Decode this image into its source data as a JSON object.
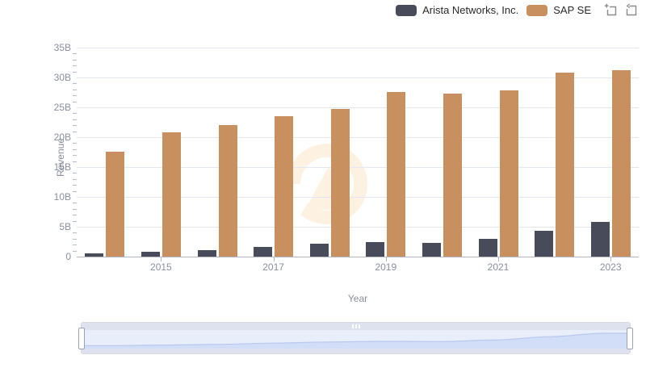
{
  "legend": {
    "items": [
      {
        "label": "Arista Networks, Inc.",
        "color": "#474b5a"
      },
      {
        "label": "SAP SE",
        "color": "#c9905f"
      }
    ]
  },
  "toolbox": {
    "icons": [
      {
        "name": "data-zoom-icon"
      },
      {
        "name": "restore-icon"
      }
    ],
    "icon_color": "#8c8c8c"
  },
  "chart_data": {
    "type": "bar",
    "title": "",
    "xlabel": "Year",
    "ylabel": "Revenue",
    "categories": [
      "2014",
      "2015",
      "2016",
      "2017",
      "2018",
      "2019",
      "2020",
      "2021",
      "2022",
      "2023"
    ],
    "series": [
      {
        "name": "Arista Networks, Inc.",
        "color": "#474b5a",
        "values": [
          0.58,
          0.84,
          1.13,
          1.65,
          2.15,
          2.41,
          2.32,
          2.95,
          4.38,
          5.86
        ]
      },
      {
        "name": "SAP SE",
        "color": "#c9905f",
        "values": [
          17.56,
          20.79,
          22.06,
          23.46,
          24.71,
          27.55,
          27.34,
          27.84,
          30.87,
          31.21
        ]
      }
    ],
    "unit": "B",
    "ylim": [
      0,
      35
    ],
    "y_tick_labels": [
      "0",
      "5B",
      "10B",
      "15B",
      "20B",
      "25B",
      "30B",
      "35B"
    ],
    "x_tick_labels": [
      "2015",
      "2017",
      "2019",
      "2021",
      "2023"
    ],
    "grid": true,
    "legend_position": "top-right",
    "colors": {
      "gridline": "#e2e7f1",
      "axis_text": "#8a8fa0",
      "watermark": "#fdf2e1"
    }
  },
  "slider": {
    "type": "data-zoom",
    "range_percent": [
      0,
      100
    ],
    "shadow_series": "Arista Networks, Inc.",
    "colors": {
      "track": "#e9eefb",
      "strip": "#dde2ee",
      "fill": "#d2ddf7",
      "line": "#b9c8ef",
      "handle_border": "#9aa3b4"
    }
  }
}
